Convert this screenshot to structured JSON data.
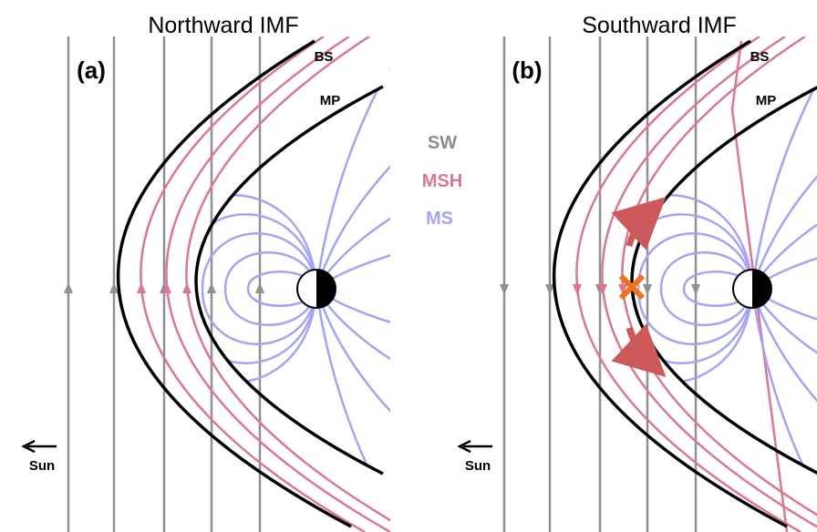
{
  "panels": [
    {
      "title": "Northward IMF",
      "label": "(a)",
      "bow_shock": "BS",
      "magnetopause": "MP",
      "sun": "Sun"
    },
    {
      "title": "Southward IMF",
      "label": "(b)",
      "bow_shock": "BS",
      "magnetopause": "MP",
      "sun": "Sun"
    }
  ],
  "legend": {
    "sw": "SW",
    "msh": "MSH",
    "ms": "MS"
  }
}
